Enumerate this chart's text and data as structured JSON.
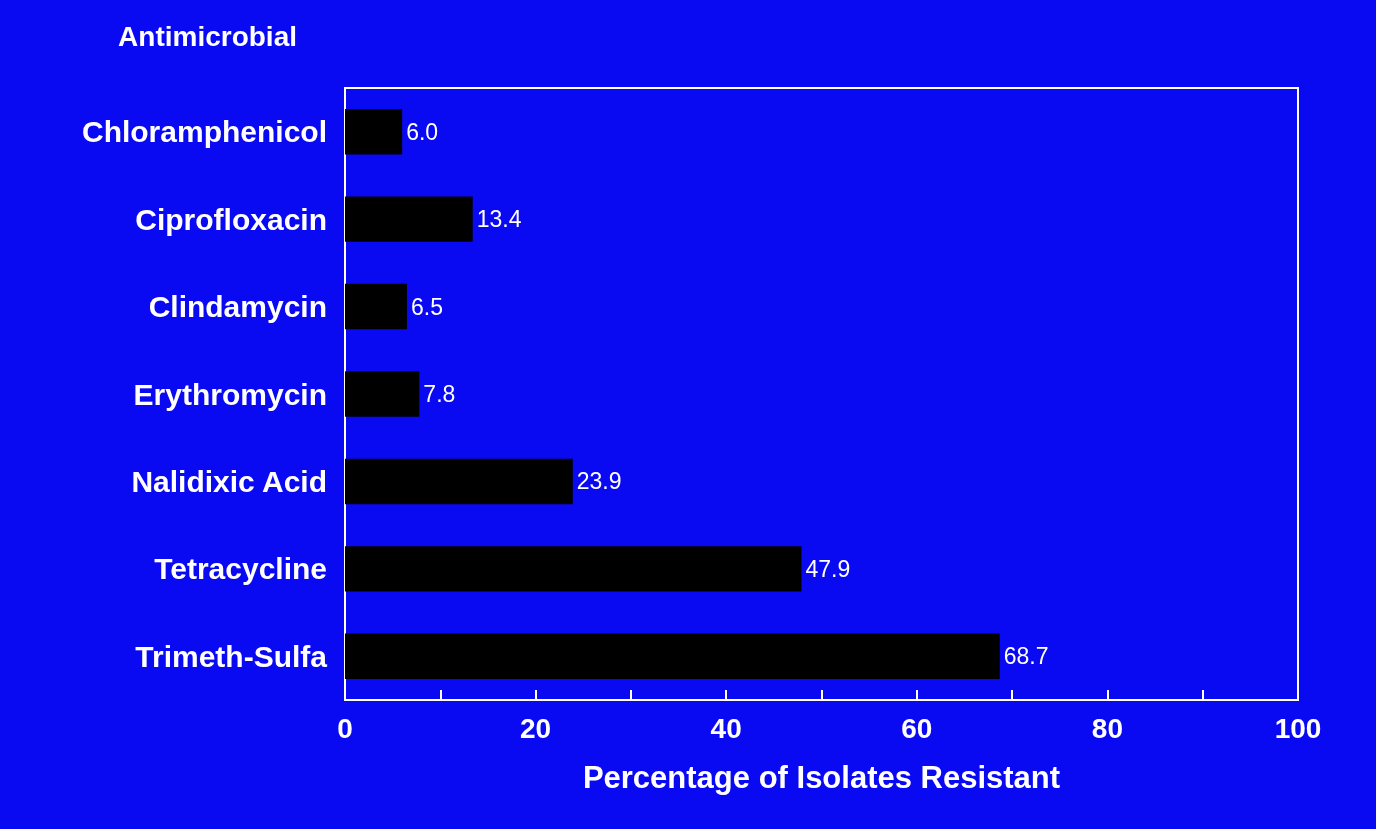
{
  "chart_data": {
    "type": "bar",
    "orientation": "horizontal",
    "ylabel": "Antimicrobial",
    "xlabel": "Percentage of Isolates Resistant",
    "categories": [
      "Chloramphenicol",
      "Ciprofloxacin",
      "Clindamycin",
      "Erythromycin",
      "Nalidixic Acid",
      "Tetracycline",
      "Trimeth-Sulfa"
    ],
    "values": [
      6.0,
      13.4,
      6.5,
      7.8,
      23.9,
      47.9,
      68.7
    ],
    "value_labels": [
      "6.0",
      "13.4",
      "6.5",
      "7.8",
      "23.9",
      "47.9",
      "68.7"
    ],
    "color": "#000000",
    "xlim": [
      0,
      100
    ],
    "xticks": [
      0,
      {
        "value": 10,
        "label": null
      },
      20,
      {
        "value": 30,
        "label": null
      },
      40,
      {
        "value": 50,
        "label": null
      },
      60,
      {
        "value": 70,
        "label": null
      },
      80,
      {
        "value": 90,
        "label": null
      },
      100
    ],
    "grid": false
  }
}
